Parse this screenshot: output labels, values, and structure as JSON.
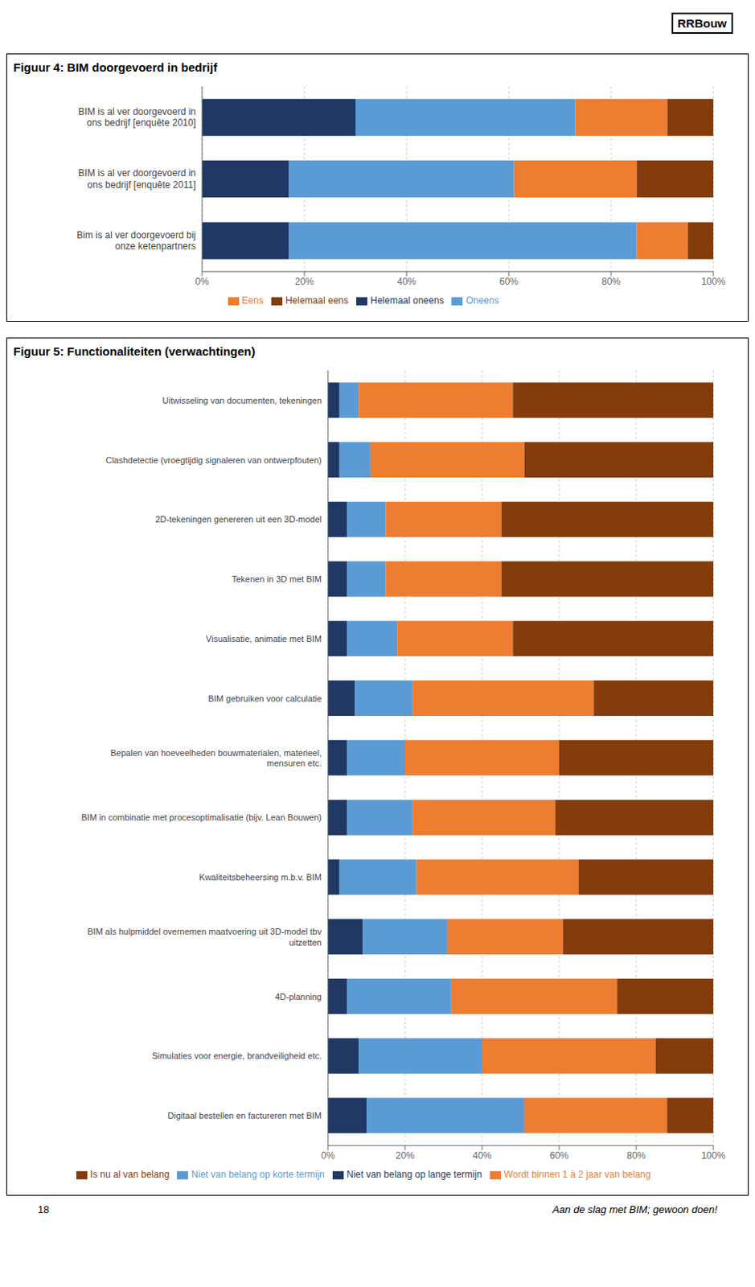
{
  "chart_data": [
    {
      "type": "bar",
      "orientation": "horizontal",
      "stacked": true,
      "title": "Figuur 4: BIM doorgevoerd in bedrijf",
      "annotations": [
        "RRBouw"
      ],
      "categories": [
        "BIM is al ver doorgevoerd in\nons bedrijf [enquête 2010]",
        "BIM is al ver doorgevoerd in\nons bedrijf [enquête 2011]",
        "Bim is al ver doorgevoerd bij\nonze ketenpartners"
      ],
      "series": [
        {
          "name": "Helemaal oneens",
          "color": "#1F3864",
          "values": [
            30,
            17,
            17
          ]
        },
        {
          "name": "Oneens",
          "color": "#5B9BD5",
          "values": [
            43,
            44,
            68
          ]
        },
        {
          "name": "Eens",
          "color": "#ED7D31",
          "values": [
            18,
            24,
            10
          ]
        },
        {
          "name": "Helemaal eens",
          "color": "#843C0C",
          "values": [
            9,
            15,
            5
          ]
        }
      ],
      "xlim": [
        0,
        100
      ],
      "xticks": [
        {
          "value": 0,
          "label": "0%"
        },
        {
          "value": 20,
          "label": "20%"
        },
        {
          "value": 40,
          "label": "40%"
        },
        {
          "value": 60,
          "label": "60%"
        },
        {
          "value": 80,
          "label": "80%"
        },
        {
          "value": 100,
          "label": "100%"
        }
      ],
      "grid": true,
      "legend": "bottom"
    },
    {
      "type": "bar",
      "orientation": "horizontal",
      "stacked": true,
      "title": "Figuur 5: Functionaliteiten (verwachtingen)",
      "annotations": [
        "18",
        "Aan de slag met BIM; gewoon doen!"
      ],
      "categories": [
        "Uitwisseling van documenten, tekeningen",
        "Clashdetectie (vroegtijdig signaleren van ontwerpfouten)",
        "2D-tekeningen genereren uit een 3D-model",
        "Tekenen in 3D met BIM",
        "Visualisatie, animatie met BIM",
        "BIM gebruiken voor calculatie",
        "Bepalen van hoeveelheden bouwmaterialen, materieel,\nmensuren etc.",
        "BIM in combinatie met procesoptimalisatie (bijv. Lean Bouwen)",
        "Kwaliteitsbeheersing m.b.v. BIM",
        "BIM als hulpmiddel overnemen maatvoering uit 3D-model tbv\nuitzetten",
        "4D-planning",
        "Simulaties voor energie, brandveiligheid etc.",
        "Digitaal bestellen en factureren met BIM"
      ],
      "series": [
        {
          "name": "Niet van belang op lange termijn",
          "color": "#1F3864",
          "values": [
            3,
            3,
            5,
            5,
            5,
            7,
            5,
            5,
            3,
            9,
            5,
            8,
            10
          ]
        },
        {
          "name": "Niet van belang op korte termijn",
          "color": "#5B9BD5",
          "values": [
            5,
            8,
            10,
            10,
            13,
            15,
            15,
            17,
            20,
            22,
            27,
            32,
            41
          ]
        },
        {
          "name": "Wordt binnen 1 à 2 jaar van belang",
          "color": "#ED7D31",
          "values": [
            40,
            40,
            30,
            30,
            30,
            47,
            40,
            37,
            42,
            30,
            43,
            45,
            37
          ]
        },
        {
          "name": "Is nu al van belang",
          "color": "#843C0C",
          "values": [
            52,
            49,
            55,
            55,
            52,
            31,
            40,
            41,
            35,
            39,
            25,
            15,
            12
          ]
        }
      ],
      "xlim": [
        0,
        100
      ],
      "xticks": [
        {
          "value": 0,
          "label": "0%"
        },
        {
          "value": 20,
          "label": "20%"
        },
        {
          "value": 40,
          "label": "40%"
        },
        {
          "value": 60,
          "label": "60%"
        },
        {
          "value": 80,
          "label": "80%"
        },
        {
          "value": 100,
          "label": "100%"
        }
      ],
      "grid": true,
      "legend": "bottom"
    }
  ]
}
